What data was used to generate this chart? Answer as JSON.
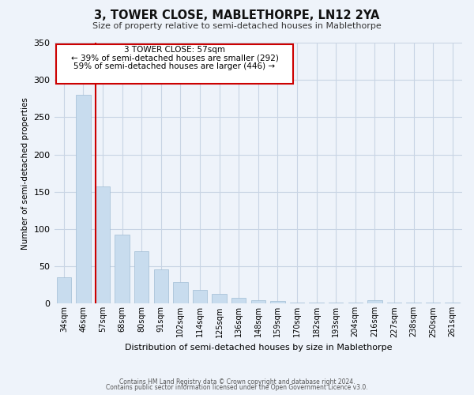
{
  "title": "3, TOWER CLOSE, MABLETHORPE, LN12 2YA",
  "subtitle": "Size of property relative to semi-detached houses in Mablethorpe",
  "xlabel": "Distribution of semi-detached houses by size in Mablethorpe",
  "ylabel": "Number of semi-detached properties",
  "bin_labels": [
    "34sqm",
    "46sqm",
    "57sqm",
    "68sqm",
    "80sqm",
    "91sqm",
    "102sqm",
    "114sqm",
    "125sqm",
    "136sqm",
    "148sqm",
    "159sqm",
    "170sqm",
    "182sqm",
    "193sqm",
    "204sqm",
    "216sqm",
    "227sqm",
    "238sqm",
    "250sqm",
    "261sqm"
  ],
  "bar_heights": [
    35,
    280,
    157,
    93,
    70,
    46,
    29,
    18,
    13,
    8,
    5,
    4,
    1,
    1,
    1,
    1,
    5,
    1,
    1,
    1,
    2
  ],
  "bar_color": "#c8dcee",
  "bar_edge_color": "#a0bcd4",
  "highlight_index": 2,
  "highlight_color": "#cc0000",
  "ylim": [
    0,
    350
  ],
  "yticks": [
    0,
    50,
    100,
    150,
    200,
    250,
    300,
    350
  ],
  "annotation_line1": "3 TOWER CLOSE: 57sqm",
  "annotation_line2": "← 39% of semi-detached houses are smaller (292)",
  "annotation_line3": "59% of semi-detached houses are larger (446) →",
  "footnote1": "Contains HM Land Registry data © Crown copyright and database right 2024.",
  "footnote2": "Contains public sector information licensed under the Open Government Licence v3.0.",
  "background_color": "#eef3fa",
  "plot_bg_color": "#eef3fa",
  "grid_color": "#c8d4e4"
}
